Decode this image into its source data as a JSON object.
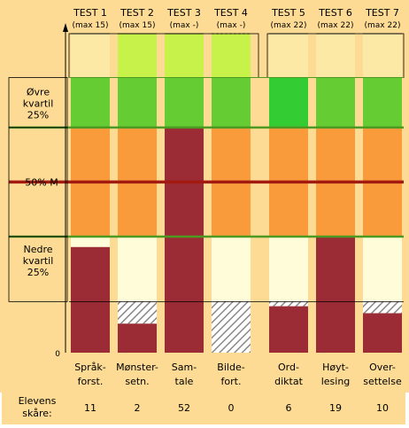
{
  "colors": {
    "background": "#fddb94",
    "zone_upper_light": "#c7f24a",
    "zone_upper_pale": "#fde9a6",
    "quartile_green": "#66cc33",
    "quartile_green_bright": "#33cc33",
    "middle_orange": "#fa9b3b",
    "lower_pale": "#fefcd9",
    "student_bar": "#9b2c35",
    "median_line": "#a31a10",
    "quartile_line": "#4c9a22",
    "hatch": "#999999"
  },
  "legend": {
    "upper_quartile": [
      "Øvre",
      "kvartil",
      "25%"
    ],
    "median": "50%   M",
    "lower_quartile": [
      "Nedre",
      "kvartil",
      "25%"
    ]
  },
  "axis": {
    "y_zero_label": "0"
  },
  "score_row": {
    "label": [
      "Elevens",
      "skåre:"
    ]
  },
  "chart_data": {
    "type": "bar",
    "categories": [
      {
        "test": "TEST 1",
        "max": "(max 15)",
        "name": [
          "Språk-",
          "forst."
        ]
      },
      {
        "test": "TEST 2",
        "max": "(max 15)",
        "name": [
          "Mønster-",
          "setn."
        ]
      },
      {
        "test": "TEST 3",
        "max": "(max -)",
        "name": [
          "Sam-",
          "tale"
        ]
      },
      {
        "test": "TEST 4",
        "max": "(max -)",
        "name": [
          "Bilde-",
          "fort."
        ]
      },
      {
        "test": "TEST 5",
        "max": "(max 22)",
        "name": [
          "Ord-",
          "diktat"
        ]
      },
      {
        "test": "TEST 6",
        "max": "(max 22)",
        "name": [
          "Høyt-",
          "lesing"
        ]
      },
      {
        "test": "TEST 7",
        "max": "(max 22)",
        "name": [
          "Over-",
          "settelse"
        ]
      }
    ],
    "scores": [
      "11",
      "2",
      "52",
      "0",
      "6",
      "19",
      "10"
    ],
    "level": {
      "min": 0,
      "max": 100,
      "lower_quartile": 50,
      "median": 73.5,
      "upper_quartile": 97
    },
    "cap_top_dashed": [
      false,
      false,
      false,
      true,
      false,
      false,
      false
    ],
    "columns": [
      {
        "group": 1,
        "bar_level": 45.5,
        "upper_zone_level": 120,
        "upper_zone_color": "zone_upper_pale",
        "quartile_color": "quartile_green",
        "lower_zone_start": 50,
        "hatch_from": null
      },
      {
        "group": 1,
        "bar_level": 12.5,
        "upper_zone_level": 128,
        "upper_zone_color": "zone_upper_light",
        "quartile_color": "quartile_green",
        "lower_zone_start": 22,
        "hatch_from": 12.5
      },
      {
        "group": 1,
        "bar_level": 97,
        "upper_zone_level": 128,
        "upper_zone_color": "zone_upper_light",
        "quartile_color": "quartile_green",
        "lower_zone_start": 50,
        "hatch_from": null
      },
      {
        "group": 1,
        "bar_level": 0,
        "upper_zone_level": 128,
        "upper_zone_color": "zone_upper_light",
        "quartile_color": "quartile_green",
        "lower_zone_start": 22,
        "hatch_from": 0
      },
      {
        "group": 2,
        "bar_level": 20,
        "upper_zone_level": 120,
        "upper_zone_color": "zone_upper_pale",
        "quartile_color": "quartile_green_bright",
        "lower_zone_start": 22,
        "hatch_from": 20
      },
      {
        "group": 2,
        "bar_level": 50,
        "upper_zone_level": 120,
        "upper_zone_color": "zone_upper_pale",
        "quartile_color": "quartile_green",
        "lower_zone_start": 22,
        "hatch_from": null
      },
      {
        "group": 2,
        "bar_level": 17,
        "upper_zone_level": 120,
        "upper_zone_color": "zone_upper_pale",
        "quartile_color": "quartile_green",
        "lower_zone_start": 22,
        "hatch_from": 17
      }
    ]
  }
}
